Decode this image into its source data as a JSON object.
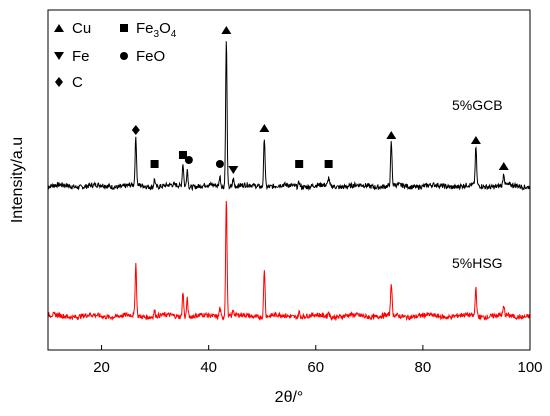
{
  "chart_data": {
    "type": "line",
    "title": "",
    "xlabel": "2θ/°",
    "ylabel": "Intensity/a.u",
    "xlim": [
      10,
      100
    ],
    "xticks": [
      20,
      40,
      60,
      80,
      100
    ],
    "yticks": [],
    "grid": false,
    "legend": {
      "position": "top-left",
      "entries": [
        {
          "marker": "triangle-up",
          "label": "Cu"
        },
        {
          "marker": "square",
          "label": "Fe3O4"
        },
        {
          "marker": "triangle-down",
          "label": "Fe"
        },
        {
          "marker": "circle",
          "label": "FeO"
        },
        {
          "marker": "diamond",
          "label": "C"
        }
      ]
    },
    "series": [
      {
        "name": "5%GCB",
        "color": "#000000",
        "baseline": 186,
        "peaks": [
          {
            "x": 26.4,
            "h": 48
          },
          {
            "x": 29.9,
            "h": 8
          },
          {
            "x": 35.2,
            "h": 23
          },
          {
            "x": 36.0,
            "h": 18
          },
          {
            "x": 42.1,
            "h": 10
          },
          {
            "x": 43.3,
            "h": 148
          },
          {
            "x": 44.6,
            "h": 8
          },
          {
            "x": 50.4,
            "h": 50
          },
          {
            "x": 56.9,
            "h": 5
          },
          {
            "x": 62.4,
            "h": 8
          },
          {
            "x": 74.1,
            "h": 43
          },
          {
            "x": 89.9,
            "h": 38
          },
          {
            "x": 95.1,
            "h": 12
          }
        ]
      },
      {
        "name": "5%HSG",
        "color": "#ff0000",
        "baseline": 316,
        "peaks": [
          {
            "x": 26.4,
            "h": 52
          },
          {
            "x": 29.9,
            "h": 6
          },
          {
            "x": 35.2,
            "h": 25
          },
          {
            "x": 36.0,
            "h": 18
          },
          {
            "x": 42.1,
            "h": 9
          },
          {
            "x": 43.3,
            "h": 118
          },
          {
            "x": 44.6,
            "h": 6
          },
          {
            "x": 50.4,
            "h": 48
          },
          {
            "x": 56.9,
            "h": 5
          },
          {
            "x": 62.4,
            "h": 5
          },
          {
            "x": 74.1,
            "h": 33
          },
          {
            "x": 89.9,
            "h": 29
          },
          {
            "x": 95.1,
            "h": 8
          }
        ]
      }
    ],
    "phase_markers": [
      {
        "x": 26.4,
        "marker": "diamond",
        "phase": "C"
      },
      {
        "x": 29.9,
        "marker": "square",
        "phase": "Fe3O4"
      },
      {
        "x": 35.2,
        "marker": "square",
        "phase": "Fe3O4"
      },
      {
        "x": 36.3,
        "marker": "circle",
        "phase": "FeO"
      },
      {
        "x": 42.1,
        "marker": "circle",
        "phase": "FeO"
      },
      {
        "x": 43.3,
        "marker": "triangle-up",
        "phase": "Cu"
      },
      {
        "x": 44.6,
        "marker": "triangle-down",
        "phase": "Fe"
      },
      {
        "x": 50.4,
        "marker": "triangle-up",
        "phase": "Cu"
      },
      {
        "x": 56.9,
        "marker": "square",
        "phase": "Fe3O4"
      },
      {
        "x": 62.4,
        "marker": "square",
        "phase": "Fe3O4"
      },
      {
        "x": 74.1,
        "marker": "triangle-up",
        "phase": "Cu"
      },
      {
        "x": 89.9,
        "marker": "triangle-up",
        "phase": "Cu"
      },
      {
        "x": 95.1,
        "marker": "triangle-up",
        "phase": "Cu"
      }
    ]
  }
}
